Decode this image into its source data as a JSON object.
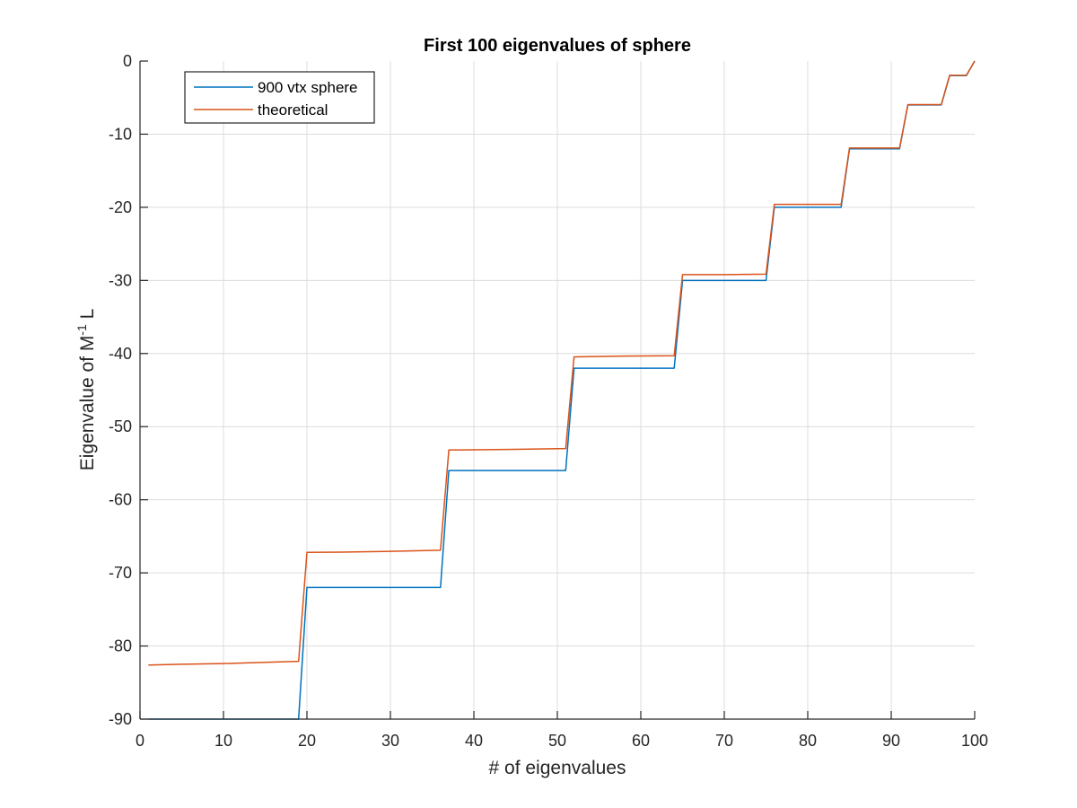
{
  "chart_data": {
    "type": "line",
    "title": "First 100 eigenvalues of sphere",
    "xlabel": "# of eigenvalues",
    "ylabel": {
      "prefix": "Eigenvalue of M",
      "superscript": "-1",
      "suffix": " L"
    },
    "xlim": [
      0,
      100
    ],
    "ylim": [
      -90,
      0
    ],
    "xticks": [
      0,
      10,
      20,
      30,
      40,
      50,
      60,
      70,
      80,
      90,
      100
    ],
    "yticks": [
      0,
      -10,
      -20,
      -30,
      -40,
      -50,
      -60,
      -70,
      -80,
      -90
    ],
    "grid": true,
    "legend_position": "top-left",
    "series": [
      {
        "name": "900 vtx sphere",
        "color": "#0072BD",
        "x": [
          1,
          19,
          20,
          36,
          37,
          51,
          52,
          64,
          65,
          75,
          76,
          84,
          85,
          91,
          92,
          96,
          97,
          99,
          100
        ],
        "y": [
          -90,
          -90,
          -72,
          -72,
          -56,
          -56,
          -42,
          -42,
          -30,
          -30,
          -20,
          -20,
          -12,
          -12,
          -6,
          -6,
          -2,
          -2,
          0
        ]
      },
      {
        "name": "theoretical",
        "color": "#D95319",
        "x": [
          1,
          5,
          10,
          19,
          20,
          25,
          30,
          36,
          37,
          45,
          51,
          52,
          58,
          64,
          65,
          70,
          75,
          76,
          80,
          84,
          85,
          91,
          92,
          96,
          97,
          99,
          100
        ],
        "y": [
          -82.6,
          -82.5,
          -82.4,
          -82.1,
          -67.2,
          -67.15,
          -67.05,
          -66.9,
          -53.2,
          -53.1,
          -53.0,
          -40.45,
          -40.35,
          -40.3,
          -29.2,
          -29.2,
          -29.15,
          -19.6,
          -19.6,
          -19.6,
          -11.9,
          -11.9,
          -5.95,
          -5.95,
          -1.95,
          -1.95,
          0
        ]
      }
    ]
  }
}
